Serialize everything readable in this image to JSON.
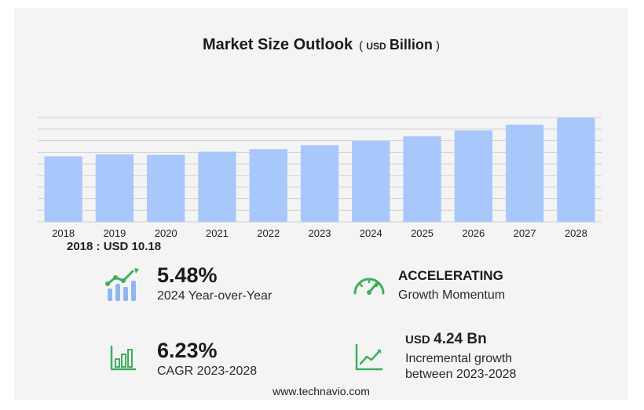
{
  "header": {
    "title": "Market Size Outlook",
    "unit_open": "(",
    "unit_currency": "USD",
    "unit_scale": "Billion",
    "unit_close": ")"
  },
  "colors": {
    "bar": "#a8c8fb",
    "grid": "#cfcfcf",
    "card": "#f4f4f4",
    "icon_green": "#3fae5d",
    "icon_blue": "#8fb6f2"
  },
  "chart_data": {
    "type": "bar",
    "categories": [
      "2018",
      "2019",
      "2020",
      "2021",
      "2022",
      "2023",
      "2024",
      "2025",
      "2026",
      "2027",
      "2028"
    ],
    "values": [
      10.18,
      10.5,
      10.4,
      10.9,
      11.3,
      11.9,
      12.6,
      13.3,
      14.2,
      15.1,
      16.2
    ],
    "title": "Market Size Outlook (USD Billion)",
    "xlabel": "",
    "ylabel": "",
    "ylim": [
      0,
      16.2
    ],
    "grid": true,
    "legend": "none"
  },
  "baseline": {
    "label": "2018 : USD  10.18"
  },
  "stats": {
    "yoy_value": "5.48%",
    "yoy_label": "2024 Year-over-Year",
    "momentum_value": "ACCELERATING",
    "momentum_label": "Growth Momentum",
    "cagr_value": "6.23%",
    "cagr_label": "CAGR 2023-2028",
    "incremental_currency": "USD",
    "incremental_value": "4.24 Bn",
    "incremental_label_1": "Incremental growth",
    "incremental_label_2": "between 2023-2028"
  },
  "footer": {
    "url": "www.technavio.com"
  }
}
